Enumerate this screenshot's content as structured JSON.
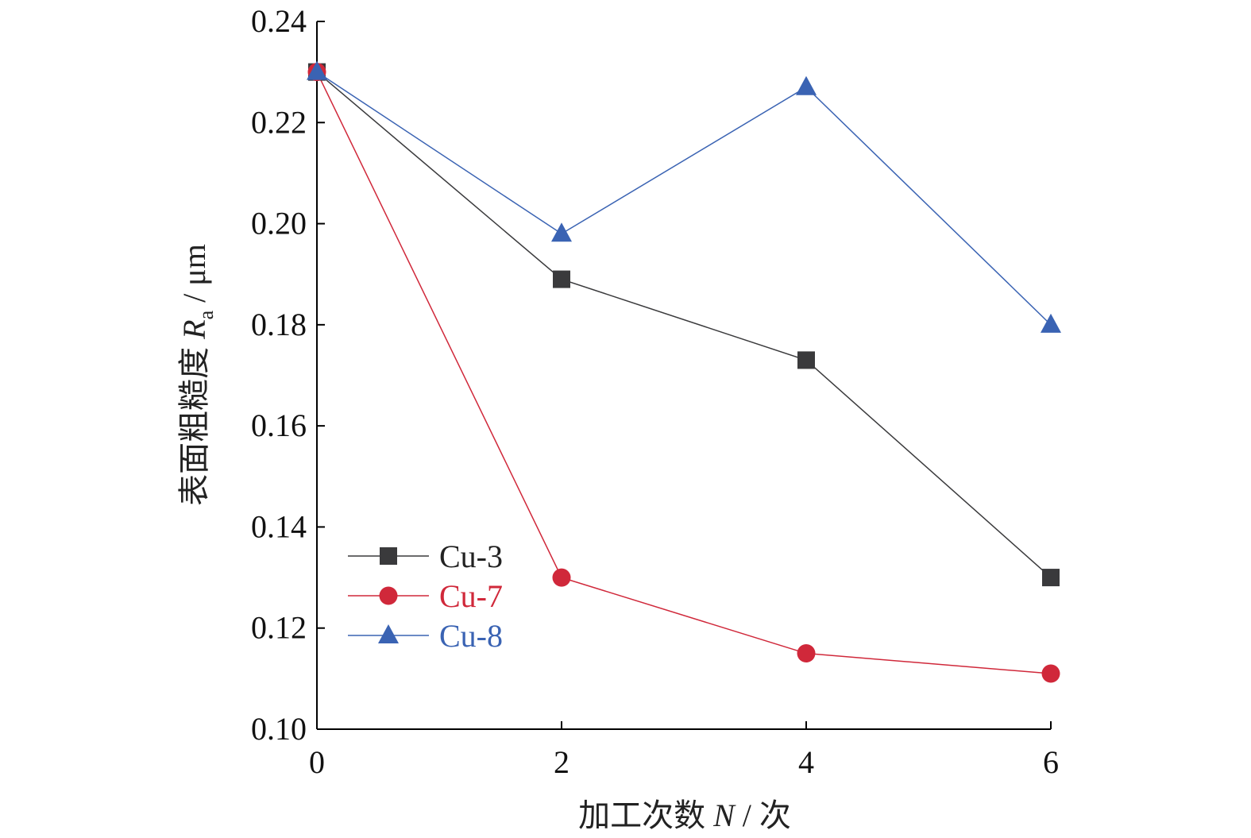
{
  "chart_data": {
    "type": "line",
    "x": [
      0,
      2,
      4,
      6
    ],
    "xlim": [
      0,
      6
    ],
    "ylim": [
      0.1,
      0.24
    ],
    "x_ticks": [
      "0",
      "2",
      "4",
      "6"
    ],
    "y_ticks": [
      "0.10",
      "0.12",
      "0.14",
      "0.16",
      "0.18",
      "0.20",
      "0.22",
      "0.24"
    ],
    "xlabel": {
      "prefix": "加工次数 ",
      "italic": "N",
      "suffix": " / 次"
    },
    "ylabel": {
      "prefix": "表面粗糙度 ",
      "italic": "R",
      "subscript": "a",
      "suffix": " / μm"
    },
    "grid": false,
    "legend_position": "bottom-left",
    "series": [
      {
        "name": "Cu-3",
        "values": [
          0.23,
          0.189,
          0.173,
          0.13
        ],
        "color": "#3a3a3c",
        "text_color": "#222222",
        "marker": "square"
      },
      {
        "name": "Cu-7",
        "values": [
          0.23,
          0.13,
          0.115,
          0.111
        ],
        "color": "#d0283a",
        "text_color": "#d0283a",
        "marker": "circle"
      },
      {
        "name": "Cu-8",
        "values": [
          0.23,
          0.198,
          0.227,
          0.18
        ],
        "color": "#3a63b3",
        "text_color": "#3a63b3",
        "marker": "triangle"
      }
    ]
  }
}
